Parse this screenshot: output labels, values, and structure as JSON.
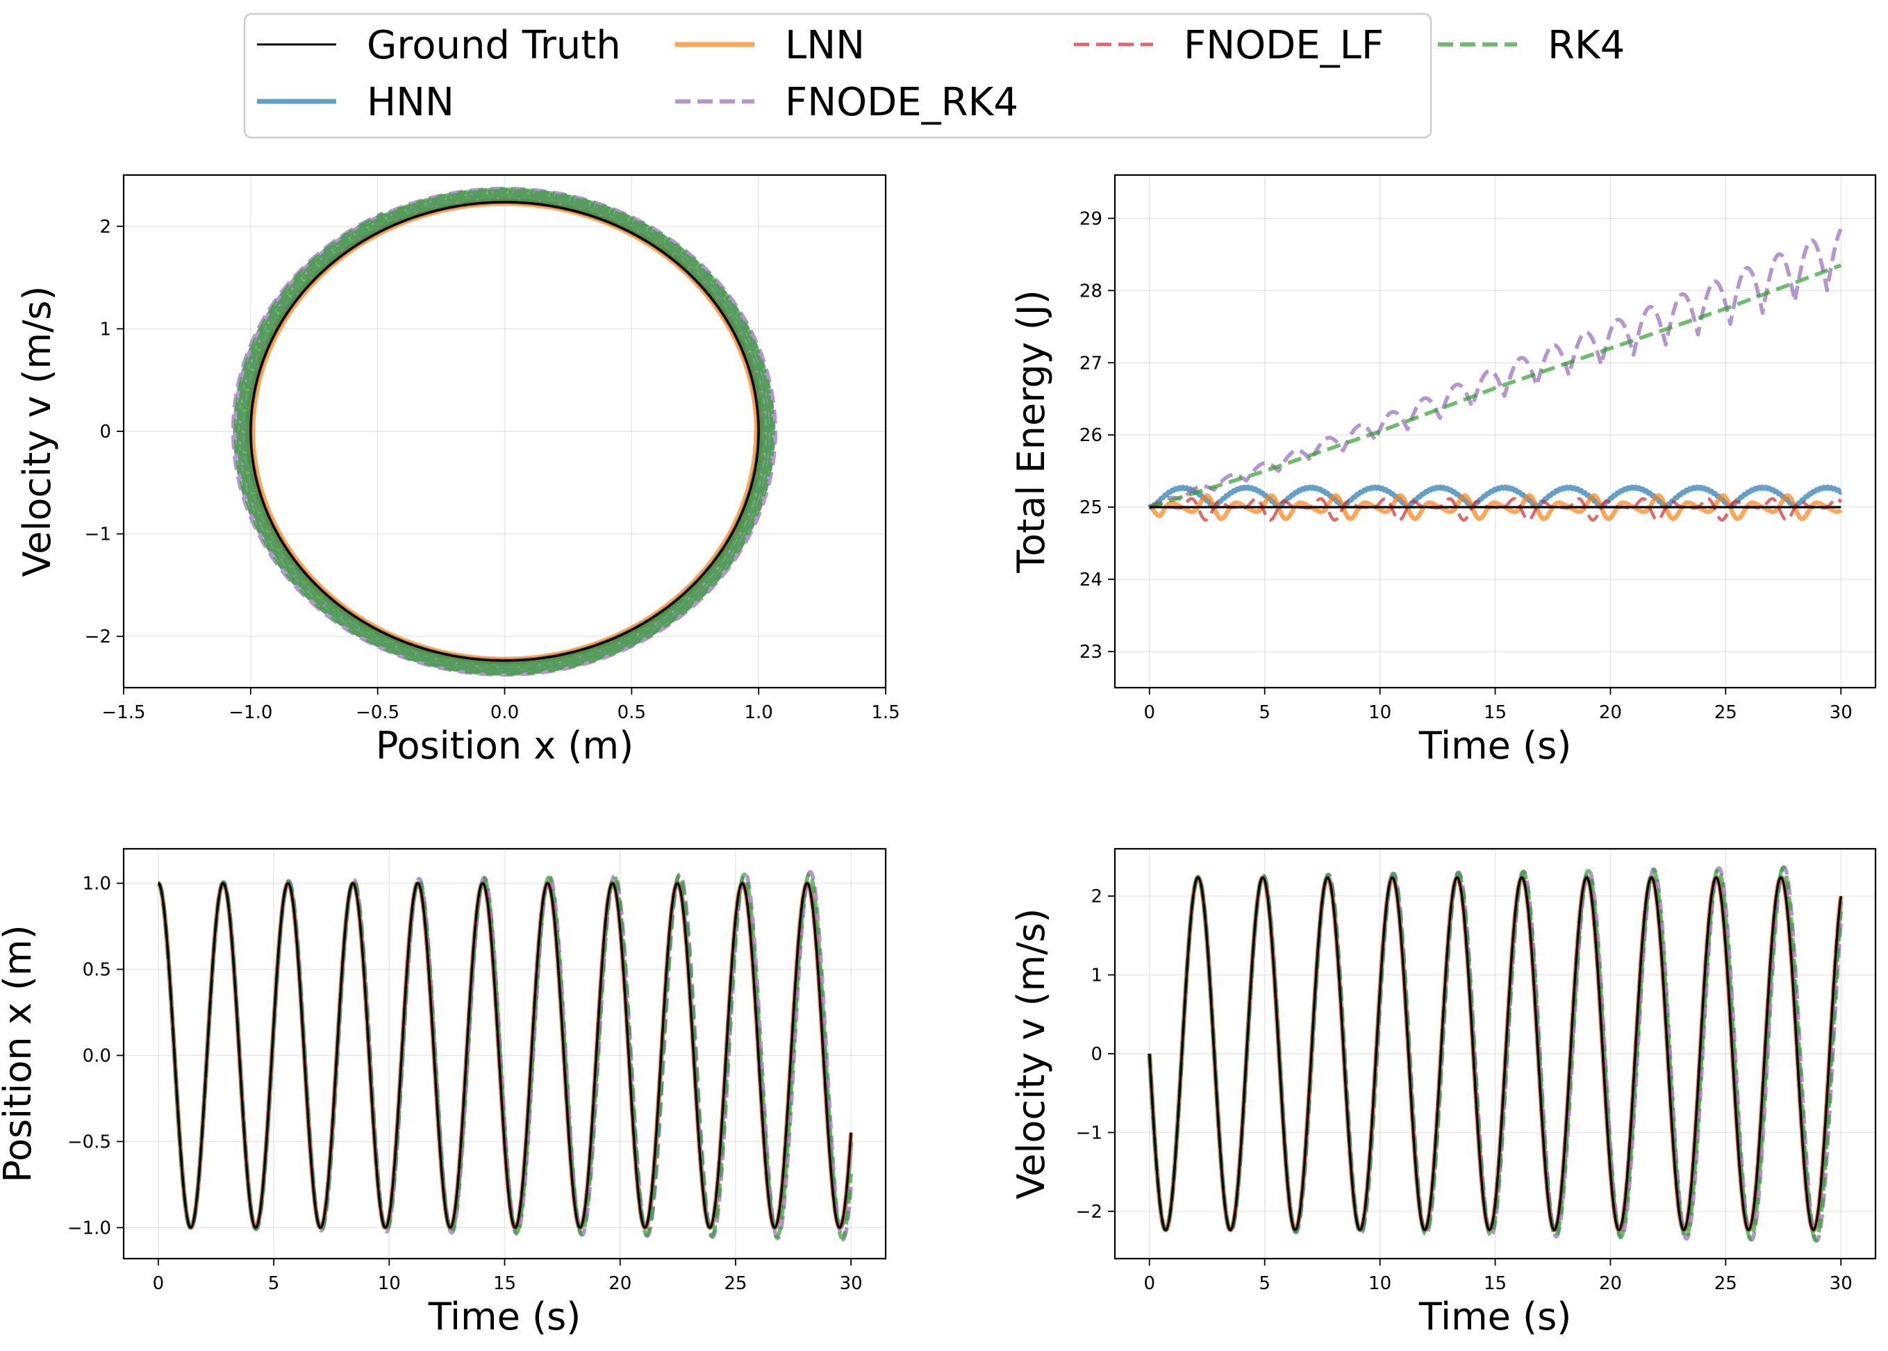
{
  "figure": {
    "legend_placement": "top-center"
  },
  "legend": [
    {
      "label": "Ground Truth",
      "color": "#000000",
      "style": "solid"
    },
    {
      "label": "HNN",
      "color": "#1f77b4",
      "style": "solid"
    },
    {
      "label": "LNN",
      "color": "#ff7f0e",
      "style": "solid"
    },
    {
      "label": "FNODE_RK4",
      "color": "#9467bd",
      "style": "dashed"
    },
    {
      "label": "FNODE_LF",
      "color": "#d62728",
      "style": "dashed"
    },
    {
      "label": "RK4",
      "color": "#2ca02c",
      "style": "dashed"
    }
  ],
  "chart_data": [
    {
      "id": "phase",
      "type": "line",
      "title": "",
      "xlabel": "Position x (m)",
      "ylabel": "Velocity v (m/s)",
      "xlim": [
        -1.5,
        1.5
      ],
      "ylim": [
        -2.5,
        2.5
      ],
      "xticks": [
        -1.5,
        -1.0,
        -0.5,
        0.0,
        0.5,
        1.0,
        1.5
      ],
      "xtick_labels": [
        "−1.5",
        "−1.0",
        "−0.5",
        "0.0",
        "0.5",
        "1.0",
        "1.5"
      ],
      "yticks": [
        -2,
        -1,
        0,
        1,
        2
      ],
      "ytick_labels": [
        "−2",
        "−1",
        "0",
        "1",
        "2"
      ],
      "grid": true,
      "series": [
        {
          "name": "Ground Truth",
          "curve": "ellipse",
          "x_amplitude": 1.0,
          "v_amplitude": 2.236
        },
        {
          "name": "HNN",
          "curve": "ellipse",
          "x_amplitude_range": [
            1.0,
            1.01
          ],
          "v_amplitude_range": [
            2.236,
            2.25
          ]
        },
        {
          "name": "LNN",
          "curve": "ellipse",
          "x_amplitude_range": [
            0.99,
            1.01
          ],
          "v_amplitude_range": [
            2.22,
            2.25
          ]
        },
        {
          "name": "FNODE_RK4",
          "curve": "ellipse",
          "x_amplitude_range": [
            1.0,
            1.07
          ],
          "v_amplitude_range": [
            2.236,
            2.38
          ]
        },
        {
          "name": "FNODE_LF",
          "curve": "ellipse",
          "x_amplitude_range": [
            1.0,
            1.0
          ],
          "v_amplitude_range": [
            2.236,
            2.24
          ]
        },
        {
          "name": "RK4",
          "curve": "ellipse",
          "x_amplitude_range": [
            1.0,
            1.06
          ],
          "v_amplitude_range": [
            2.236,
            2.37
          ]
        }
      ]
    },
    {
      "id": "energy",
      "type": "line",
      "title": "",
      "xlabel": "Time (s)",
      "ylabel": "Total Energy (J)",
      "xlim": [
        -1.5,
        31.5
      ],
      "ylim": [
        22.5,
        29.6
      ],
      "xticks": [
        0,
        5,
        10,
        15,
        20,
        25,
        30
      ],
      "xtick_labels": [
        "0",
        "5",
        "10",
        "15",
        "20",
        "25",
        "30"
      ],
      "yticks": [
        23,
        24,
        25,
        26,
        27,
        28,
        29
      ],
      "ytick_labels": [
        "23",
        "24",
        "25",
        "26",
        "27",
        "28",
        "29"
      ],
      "grid": true,
      "series": [
        {
          "name": "Ground Truth",
          "x": [
            0,
            30
          ],
          "y": [
            25.0,
            25.0
          ]
        },
        {
          "name": "HNN",
          "x": [
            0,
            30
          ],
          "y": [
            25.0,
            25.0
          ],
          "oscillation": {
            "base": 25.0,
            "amplitude": 0.27,
            "period_s": 2.8,
            "shape": "humps above",
            "end_value": 25.25
          }
        },
        {
          "name": "LNN",
          "x": [
            0,
            30
          ],
          "y": [
            25.0,
            25.0
          ],
          "oscillation": {
            "base": 25.0,
            "amplitude": 0.18,
            "period_s": 1.4,
            "shape": "around baseline",
            "end_value": 24.95
          }
        },
        {
          "name": "FNODE_LF",
          "x": [
            0,
            30
          ],
          "y": [
            25.0,
            25.0
          ],
          "oscillation": {
            "base": 25.0,
            "amplitude": 0.18,
            "period_s": 1.4,
            "shape": "around baseline",
            "end_value": 25.0
          }
        },
        {
          "name": "RK4",
          "x": [
            0,
            5,
            10,
            15,
            20,
            25,
            30
          ],
          "y": [
            25.0,
            25.5,
            26.05,
            26.65,
            27.2,
            27.75,
            28.35
          ]
        },
        {
          "name": "FNODE_RK4",
          "x": [
            0,
            5,
            10,
            15,
            20,
            25,
            30
          ],
          "y": [
            25.0,
            25.5,
            26.05,
            26.65,
            27.2,
            27.75,
            28.35
          ],
          "oscillation": {
            "amplitude_start": 0.05,
            "amplitude_end": 0.8,
            "period_s": 1.4,
            "peak_value_at_30s": 29.15,
            "end_value": 28.95
          }
        }
      ]
    },
    {
      "id": "position",
      "type": "line",
      "title": "",
      "xlabel": "Time (s)",
      "ylabel": "Position x (m)",
      "xlim": [
        -1.5,
        31.5
      ],
      "ylim": [
        -1.18,
        1.2
      ],
      "xticks": [
        0,
        5,
        10,
        15,
        20,
        25,
        30
      ],
      "xtick_labels": [
        "0",
        "5",
        "10",
        "15",
        "20",
        "25",
        "30"
      ],
      "yticks": [
        -1.0,
        -0.5,
        0.0,
        0.5,
        1.0
      ],
      "ytick_labels": [
        "−1.0",
        "−0.5",
        "0.0",
        "0.5",
        "1.0"
      ],
      "grid": true,
      "series": [
        {
          "name": "Ground Truth",
          "function": "cos",
          "amplitude": 1.0,
          "omega": 2.236,
          "t_range": [
            0,
            30
          ],
          "end_value": -0.46
        },
        {
          "name": "HNN",
          "function": "cos",
          "amplitude": 1.0,
          "omega": 2.234,
          "t_range": [
            0,
            30
          ]
        },
        {
          "name": "LNN",
          "function": "cos",
          "amplitude": 1.0,
          "omega": 2.236,
          "t_range": [
            0,
            30
          ]
        },
        {
          "name": "FNODE_RK4",
          "function": "cos",
          "amplitude_range": [
            1.0,
            1.07
          ],
          "omega": 2.225,
          "t_range": [
            0,
            30
          ]
        },
        {
          "name": "FNODE_LF",
          "function": "cos",
          "amplitude": 1.0,
          "omega": 2.236,
          "t_range": [
            0,
            30
          ]
        },
        {
          "name": "RK4",
          "function": "cos",
          "amplitude_range": [
            1.0,
            1.06
          ],
          "omega": 2.228,
          "t_range": [
            0,
            30
          ]
        }
      ]
    },
    {
      "id": "velocity",
      "type": "line",
      "title": "",
      "xlabel": "Time (s)",
      "ylabel": "Velocity v (m/s)",
      "xlim": [
        -1.5,
        31.5
      ],
      "ylim": [
        -2.6,
        2.6
      ],
      "xticks": [
        0,
        5,
        10,
        15,
        20,
        25,
        30
      ],
      "xtick_labels": [
        "0",
        "5",
        "10",
        "15",
        "20",
        "25",
        "30"
      ],
      "yticks": [
        -2,
        -1,
        0,
        1,
        2
      ],
      "ytick_labels": [
        "−2",
        "−1",
        "0",
        "1",
        "2"
      ],
      "grid": true,
      "series": [
        {
          "name": "Ground Truth",
          "function": "-sin",
          "amplitude": 2.236,
          "omega": 2.236,
          "t_range": [
            0,
            30
          ],
          "end_value": 1.98
        },
        {
          "name": "HNN",
          "function": "-sin",
          "amplitude": 2.236,
          "omega": 2.234,
          "t_range": [
            0,
            30
          ]
        },
        {
          "name": "LNN",
          "function": "-sin",
          "amplitude": 2.236,
          "omega": 2.236,
          "t_range": [
            0,
            30
          ]
        },
        {
          "name": "FNODE_RK4",
          "function": "-sin",
          "amplitude_range": [
            2.236,
            2.38
          ],
          "omega": 2.225,
          "t_range": [
            0,
            30
          ]
        },
        {
          "name": "FNODE_LF",
          "function": "-sin",
          "amplitude": 2.236,
          "omega": 2.236,
          "t_range": [
            0,
            30
          ]
        },
        {
          "name": "RK4",
          "function": "-sin",
          "amplitude_range": [
            2.236,
            2.37
          ],
          "omega": 2.228,
          "t_range": [
            0,
            30
          ]
        }
      ]
    }
  ]
}
